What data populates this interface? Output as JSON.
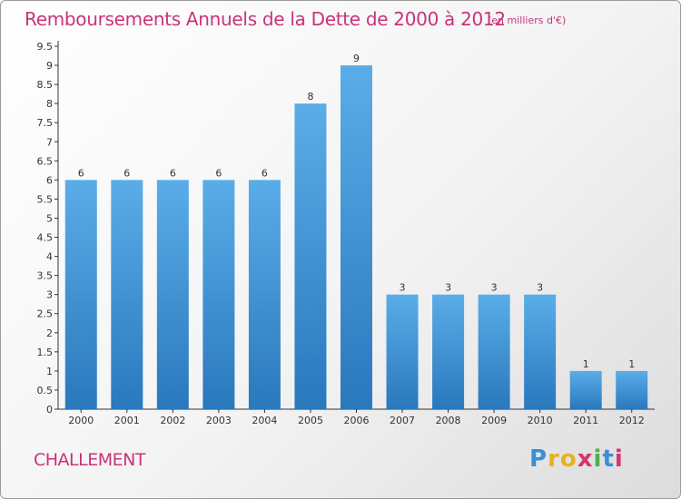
{
  "header": {
    "title": "Remboursements Annuels de la Dette de 2000 à 2012",
    "unit": "(en milliers d'€)"
  },
  "footer": {
    "city": "CHALLEMENT",
    "logo": "Proxiti"
  },
  "colors": {
    "title": "#c8337a",
    "bar_top": "#5aade8",
    "bar_bottom": "#2a78bd"
  },
  "chart_data": {
    "type": "bar",
    "categories": [
      "2000",
      "2001",
      "2002",
      "2003",
      "2004",
      "2005",
      "2006",
      "2007",
      "2008",
      "2009",
      "2010",
      "2011",
      "2012"
    ],
    "values": [
      6,
      6,
      6,
      6,
      6,
      8,
      9,
      3,
      3,
      3,
      3,
      1,
      1
    ],
    "data_labels": [
      "6",
      "6",
      "6",
      "6",
      "6",
      "8",
      "9",
      "3",
      "3",
      "3",
      "3",
      "1",
      "1"
    ],
    "y_ticks": [
      "0",
      "0.5",
      "1",
      "1.5",
      "2",
      "2.5",
      "3",
      "3.5",
      "4",
      "4.5",
      "5",
      "5.5",
      "6",
      "6.5",
      "7",
      "7.5",
      "8",
      "8.5",
      "9",
      "9.5"
    ],
    "ylim": [
      0,
      9.5
    ],
    "title": "Remboursements Annuels de la Dette de 2000 à 2012",
    "xlabel": "",
    "ylabel": "",
    "grid": false,
    "legend": "none"
  }
}
